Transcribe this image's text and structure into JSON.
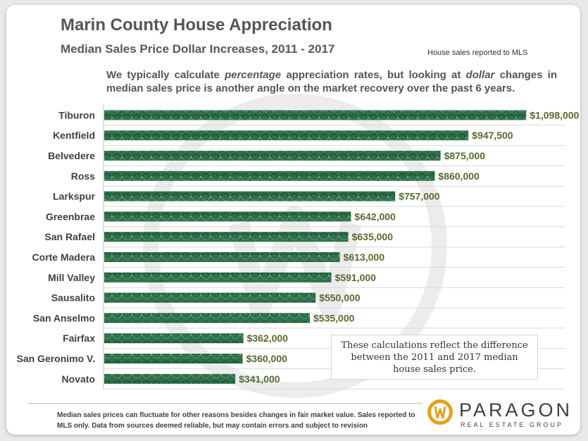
{
  "header": {
    "title": "Marin County House Appreciation",
    "subtitle": "Median Sales Price Dollar Increases, 2011 - 2017",
    "note": "House sales reported to MLS"
  },
  "intro": {
    "part1": "We typically calculate ",
    "em1": "percentage",
    "part2": " appreciation rates, but looking at ",
    "em2": "dollar",
    "part3": " changes in median  sales price is another angle on the market recovery  over the past 6 years."
  },
  "callout": {
    "line1": "These calculations reflect the difference",
    "line2": "between the 2011 and 2017 median",
    "line3": "house sales price."
  },
  "footer": {
    "text": "Median sales prices can fluctuate for other reasons  besides changes in fair market value. Sales reported to MLS only. Data from sources deemed reliable, but may contain errors and subject to revision"
  },
  "logo": {
    "name": "PARAGON",
    "tagline": "REAL ESTATE GROUP",
    "icon": "paragon-logo-icon"
  },
  "colors": {
    "bar": "#2f6f4a",
    "bar_dark": "#1e4f33",
    "value_label": "#556b2f",
    "category_label": "#404040",
    "watermark": "#ececec",
    "logo_gold": "#e3a21a"
  },
  "chart_data": {
    "type": "bar",
    "orientation": "horizontal",
    "title": "Median Sales Price Dollar Increases, 2011 - 2017",
    "xlabel": "",
    "ylabel": "",
    "xlim": [
      0,
      1200000
    ],
    "grid": true,
    "legend": "none",
    "categories": [
      "Tiburon",
      "Kentfield",
      "Belvedere",
      "Ross",
      "Larkspur",
      "Greenbrae",
      "San Rafael",
      "Corte Madera",
      "Mill Valley",
      "Sausalito",
      "San Anselmo",
      "Fairfax",
      "San Geronimo V.",
      "Novato"
    ],
    "values": [
      1098000,
      947500,
      875000,
      860000,
      757000,
      642000,
      635000,
      613000,
      591000,
      550000,
      535000,
      362000,
      360000,
      341000
    ],
    "value_labels": [
      "$1,098,000",
      "$947,500",
      "$875,000",
      "$860,000",
      "$757,000",
      "$642,000",
      "$635,000",
      "$613,000",
      "$591,000",
      "$550,000",
      "$535,000",
      "$362,000",
      "$360,000",
      "$341,000"
    ]
  }
}
